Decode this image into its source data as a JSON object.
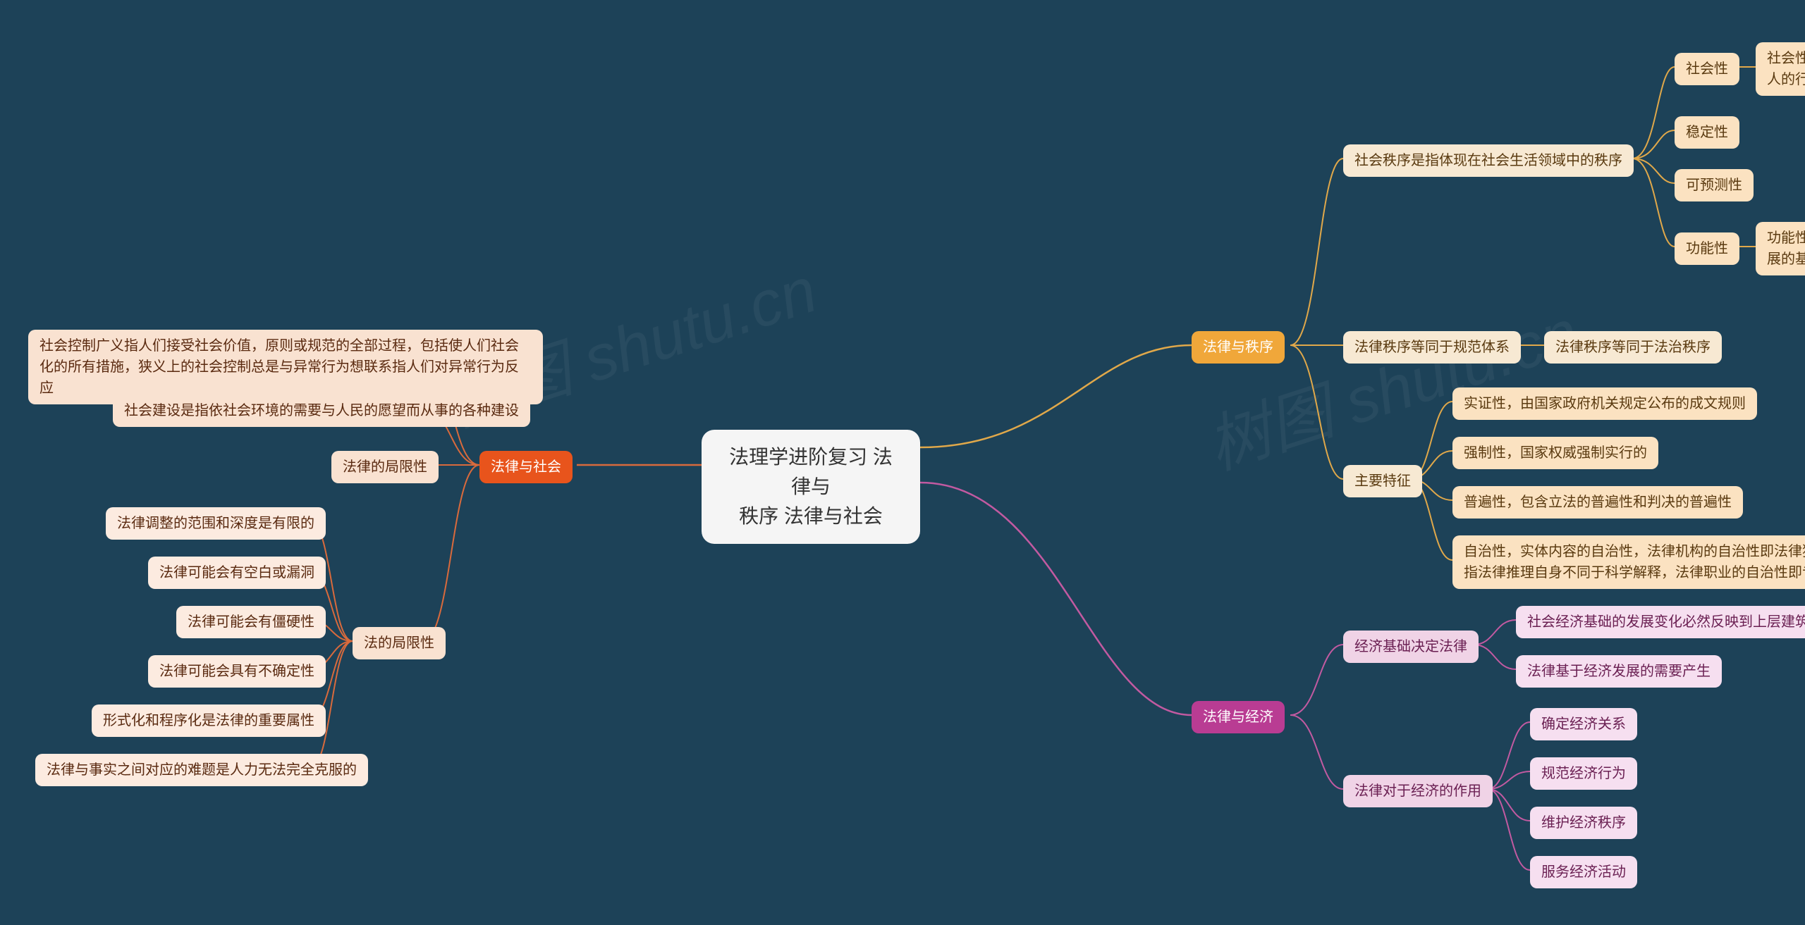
{
  "background_color": "#1d4258",
  "root": {
    "label": "法理学进阶复习   法律与\n秩序  法律与社会",
    "bg": "#f5f5f5",
    "fg": "#333333"
  },
  "branches": {
    "order": {
      "label": "法律与秩序",
      "bg": "#f0a73a",
      "fg": "#ffffff",
      "line": "#e0a84a",
      "children": [
        {
          "label": "社会秩序是指体现在社会生活领域中的秩序",
          "bg": "#f7e9d3",
          "fg": "#5a3a10",
          "children": [
            {
              "label": "社会性",
              "bg": "#fbe2c1",
              "fg": "#5a3a10",
              "detail": "社会性即人与人或人与自然的关系离不开人的行为"
            },
            {
              "label": "稳定性",
              "bg": "#fbe2c1",
              "fg": "#5a3a10"
            },
            {
              "label": "可预测性",
              "bg": "#fbe2c1",
              "fg": "#5a3a10"
            },
            {
              "label": "功能性",
              "bg": "#fbe2c1",
              "fg": "#5a3a10",
              "detail": "功能性指社会秩序是社会生活得以存在和发展的基础和前提"
            }
          ]
        },
        {
          "label": "法律秩序等同于规范体系",
          "bg": "#f7e9d3",
          "fg": "#5a3a10",
          "detail": "法律秩序等同于法治秩序"
        },
        {
          "label": "主要特征",
          "bg": "#f7e9d3",
          "fg": "#5a3a10",
          "children": [
            {
              "label": "实证性，由国家政府机关规定公布的成文规则",
              "bg": "#fbe2c1",
              "fg": "#5a3a10"
            },
            {
              "label": "强制性，国家权威强制实行的",
              "bg": "#fbe2c1",
              "fg": "#5a3a10"
            },
            {
              "label": "普遍性，包含立法的普遍性和判决的普遍性",
              "bg": "#fbe2c1",
              "fg": "#5a3a10"
            },
            {
              "label": "自治性，实体内容的自治性，法律机构的自治性即法律独立于行政和立法，法律方法的自治性指法律推理自身不同于科学解释，法律职业的自治性即专业化法律职业团体",
              "bg": "#fbe2c1",
              "fg": "#5a3a10"
            }
          ]
        }
      ]
    },
    "economy": {
      "label": "法律与经济",
      "bg": "#b93c93",
      "fg": "#ffffff",
      "line": "#c25aa1",
      "children": [
        {
          "label": "经济基础决定法律",
          "bg": "#f0d3e6",
          "fg": "#6a1f52",
          "children": [
            {
              "label": "社会经济基础的发展变化必然反映到上层建筑",
              "bg": "#f6dff0",
              "fg": "#6a1f52"
            },
            {
              "label": "法律基于经济发展的需要产生",
              "bg": "#f6dff0",
              "fg": "#6a1f52"
            }
          ]
        },
        {
          "label": "法律对于经济的作用",
          "bg": "#f0d3e6",
          "fg": "#6a1f52",
          "children": [
            {
              "label": "确定经济关系",
              "bg": "#f6dff0",
              "fg": "#6a1f52"
            },
            {
              "label": "规范经济行为",
              "bg": "#f6dff0",
              "fg": "#6a1f52"
            },
            {
              "label": "维护经济秩序",
              "bg": "#f6dff0",
              "fg": "#6a1f52"
            },
            {
              "label": "服务经济活动",
              "bg": "#f6dff0",
              "fg": "#6a1f52"
            }
          ]
        }
      ]
    },
    "society": {
      "label": "法律与社会",
      "bg": "#e8541c",
      "fg": "#ffffff",
      "line": "#d96a3c",
      "children": [
        {
          "label": "社会控制广义指人们接受社会价值，原则或规范的全部过程，包括使人们社会化的所有措施，狭义上的社会控制总是与异常行为想联系指人们对异常行为反应",
          "bg": "#f9e2d1",
          "fg": "#5a2a10"
        },
        {
          "label": "社会建设是指依社会环境的需要与人民的愿望而从事的各种建设",
          "bg": "#f9e2d1",
          "fg": "#5a2a10"
        },
        {
          "label": "法律的局限性",
          "bg": "#f9e2d1",
          "fg": "#5a2a10"
        },
        {
          "label": "法的局限性",
          "bg": "#f9e2d1",
          "fg": "#5a2a10",
          "children": [
            {
              "label": "法律调整的范围和深度是有限的",
              "bg": "#fcebe0",
              "fg": "#5a2a10"
            },
            {
              "label": "法律可能会有空白或漏洞",
              "bg": "#fcebe0",
              "fg": "#5a2a10"
            },
            {
              "label": "法律可能会有僵硬性",
              "bg": "#fcebe0",
              "fg": "#5a2a10"
            },
            {
              "label": "法律可能会具有不确定性",
              "bg": "#fcebe0",
              "fg": "#5a2a10"
            },
            {
              "label": "形式化和程序化是法律的重要属性",
              "bg": "#fcebe0",
              "fg": "#5a2a10"
            },
            {
              "label": "法律与事实之间对应的难题是人力无法完全克服的",
              "bg": "#fcebe0",
              "fg": "#5a2a10"
            }
          ]
        }
      ]
    }
  },
  "watermark": "树图 shutu.cn"
}
